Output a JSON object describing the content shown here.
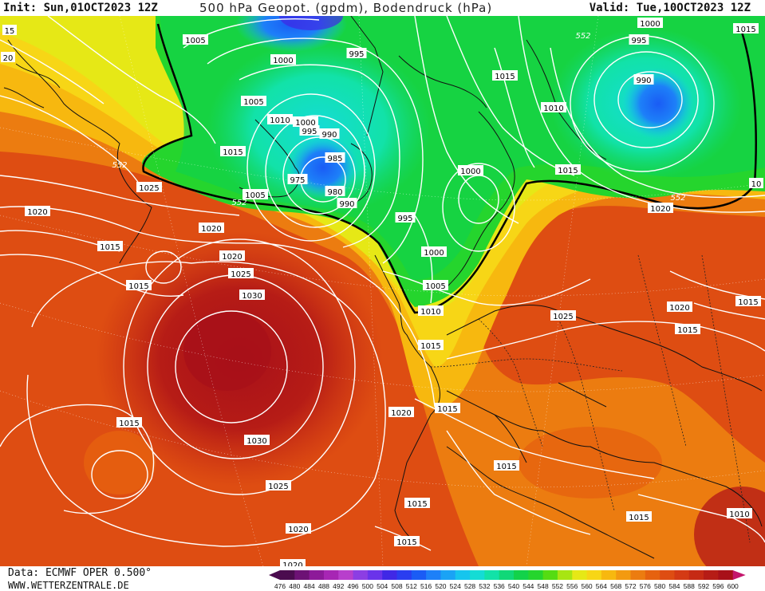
{
  "header": {
    "init": "Init: Sun,01OCT2023 12Z",
    "title": "500 hPa Geopot. (gpdm), Bodendruck (hPa)",
    "valid": "Valid: Tue,10OCT2023 12Z"
  },
  "footer": {
    "data_source": "Data: ECMWF OPER 0.500°",
    "website": "WWW.WETTERZENTRALE.DE"
  },
  "colorbar": {
    "ticks": [
      "476",
      "480",
      "484",
      "488",
      "492",
      "496",
      "500",
      "504",
      "508",
      "512",
      "516",
      "520",
      "524",
      "528",
      "532",
      "536",
      "540",
      "544",
      "548",
      "552",
      "556",
      "560",
      "564",
      "568",
      "572",
      "576",
      "580",
      "584",
      "588",
      "592",
      "596",
      "600"
    ],
    "colors": [
      "#4b0c4f",
      "#6d1275",
      "#8d1a99",
      "#a726b4",
      "#b83fcc",
      "#8c3ee3",
      "#6a33ea",
      "#4028e6",
      "#2a3df0",
      "#1a5cf5",
      "#1d80f8",
      "#1aa3f5",
      "#16c5ee",
      "#14dcd5",
      "#12e2a8",
      "#10d878",
      "#12d24a",
      "#25d52d",
      "#55dc12",
      "#a8e512",
      "#e6e816",
      "#f7d616",
      "#f7b80f",
      "#f39a10",
      "#ec7c10",
      "#e6620f",
      "#de4d12",
      "#d43a14",
      "#c62a14",
      "#b61c16",
      "#a81019",
      "#c4156c"
    ]
  },
  "pressure_labels": [
    "1005",
    "1000",
    "995",
    "1015",
    "1000",
    "1005",
    "1010",
    "995",
    "990",
    "985",
    "975",
    "1005",
    "980",
    "990",
    "995",
    "1025",
    "1020",
    "1015",
    "1020",
    "1020",
    "1025",
    "1030",
    "1015",
    "1030",
    "1025",
    "1020",
    "1015",
    "1000",
    "1000",
    "1005",
    "1010",
    "1015",
    "1020",
    "1015",
    "1015",
    "1015",
    "1015",
    "1020",
    "1025",
    "1020",
    "1015",
    "1015",
    "1010",
    "1015",
    "1010",
    "1015",
    "1000",
    "995",
    "990",
    "1015",
    "1015",
    "1020",
    "15",
    "20",
    "10"
  ],
  "geopotential_labels": [
    "552",
    "552",
    "552",
    "552"
  ]
}
